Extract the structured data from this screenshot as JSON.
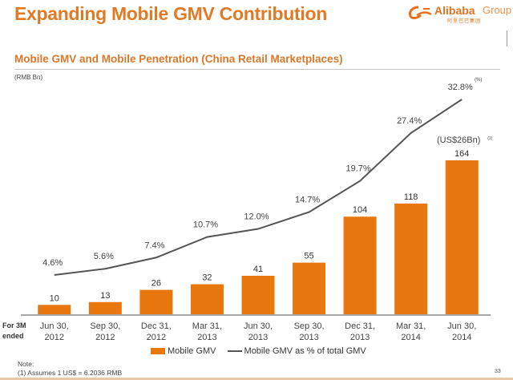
{
  "slide": {
    "title": "Expanding Mobile GMV Contribution",
    "logo": {
      "brand": "Alibaba",
      "group": "Group",
      "chinese": "阿里巴巴集团"
    },
    "subtitle": "Mobile GMV and Mobile Penetration (China Retail Marketplaces)",
    "unit_left": "(RMB Bn)",
    "unit_right": "(%)",
    "period_label_line1": "For 3M",
    "period_label_line2": "ended",
    "note_heading": "Note:",
    "note_1": "(1)   Assumes 1 US$ = 6.2036 RMB",
    "page_number": "33"
  },
  "chart_data": {
    "type": "bar",
    "title": "Mobile GMV and Mobile Penetration (China Retail Marketplaces)",
    "xlabel": "For 3M ended",
    "ylabel": "RMB Bn",
    "y2label": "%",
    "categories": [
      [
        "Jun 30,",
        "2012"
      ],
      [
        "Sep 30,",
        "2012"
      ],
      [
        "Dec 31,",
        "2012"
      ],
      [
        "Mar 31,",
        "2013"
      ],
      [
        "Jun 30,",
        "2013"
      ],
      [
        "Sep 30,",
        "2013"
      ],
      [
        "Dec 31,",
        "2013"
      ],
      [
        "Mar 31,",
        "2014"
      ],
      [
        "Jun 30,",
        "2014"
      ]
    ],
    "series": [
      {
        "name": "Mobile GMV",
        "type": "bar",
        "color": "#e8780e",
        "values": [
          10,
          13,
          26,
          32,
          41,
          55,
          104,
          118,
          164
        ],
        "labels": [
          "10",
          "13",
          "26",
          "32",
          "41",
          "55",
          "104",
          "118",
          "164"
        ]
      },
      {
        "name": "Mobile GMV as % of total GMV",
        "type": "line",
        "color": "#555555",
        "values": [
          4.6,
          5.6,
          7.4,
          10.7,
          12.0,
          14.7,
          19.7,
          27.4,
          32.8
        ],
        "labels": [
          "4.6%",
          "5.6%",
          "7.4%",
          "10.7%",
          "12.0%",
          "14.7%",
          "19.7%",
          "27.4%",
          "32.8%"
        ]
      }
    ],
    "annotations": [
      {
        "category_index": 8,
        "text": "(US$26Bn)",
        "footnote": "(1)"
      }
    ],
    "ylim": [
      0,
      190
    ],
    "y2lim": [
      0,
      36
    ],
    "grid": false,
    "legend": "bottom-center"
  }
}
